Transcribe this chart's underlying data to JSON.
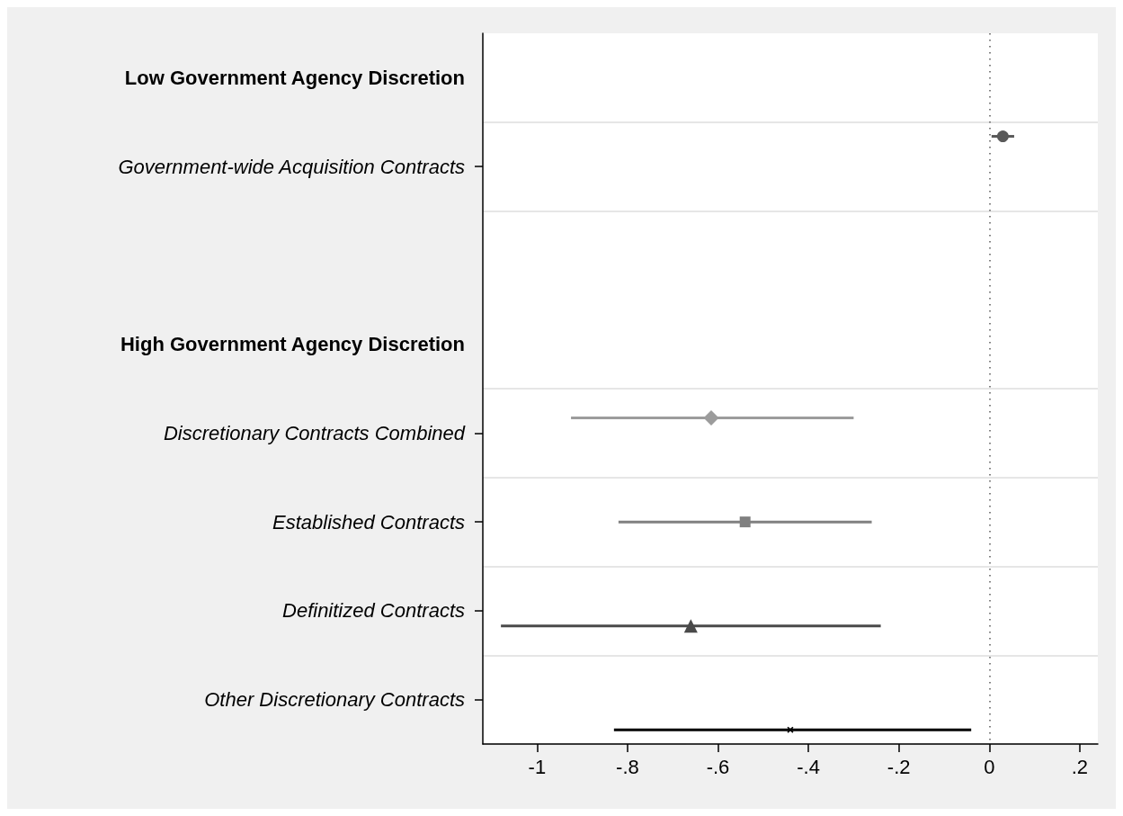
{
  "chart_data": {
    "type": "scatter",
    "orientation": "horizontal",
    "categories": [
      "Low Government Agency Discretion",
      "Government-wide Acquisition Contracts",
      null,
      "High Government Agency Discretion",
      "Discretionary Contracts Combined",
      "Established Contracts",
      "Definitized Contracts",
      "Other Discretionary Contracts"
    ],
    "series": [
      {
        "color": "#5a5a5a",
        "marker": "circle",
        "values": [
          null,
          0.03,
          null,
          null,
          null,
          null,
          null,
          null
        ],
        "errors": [
          null,
          [
            0.005,
            0.055
          ],
          null,
          null,
          null,
          null,
          null,
          null
        ]
      },
      {
        "color": "#9c9c9c",
        "marker": "diamond",
        "values": [
          null,
          null,
          null,
          null,
          -0.615,
          null,
          null,
          null
        ],
        "errors": [
          null,
          null,
          null,
          null,
          [
            -0.925,
            -0.3
          ],
          null,
          null,
          null
        ]
      },
      {
        "color": "#808080",
        "marker": "square",
        "values": [
          null,
          null,
          null,
          null,
          null,
          -0.54,
          null,
          null
        ],
        "errors": [
          null,
          null,
          null,
          null,
          null,
          [
            -0.82,
            -0.26
          ],
          null,
          null
        ]
      },
      {
        "color": "#4a4a4a",
        "marker": "triangle",
        "values": [
          null,
          null,
          null,
          null,
          null,
          null,
          -0.66,
          null
        ],
        "errors": [
          null,
          null,
          null,
          null,
          null,
          null,
          [
            -1.08,
            -0.24
          ],
          null
        ]
      },
      {
        "color": "#000000",
        "marker": "cross",
        "values": [
          null,
          null,
          null,
          null,
          null,
          null,
          null,
          -0.44
        ],
        "errors": [
          null,
          null,
          null,
          null,
          null,
          null,
          null,
          [
            -0.83,
            -0.04
          ]
        ]
      }
    ],
    "xlim": [
      -1.12,
      0.24
    ],
    "xticks": [
      -1,
      {
        "value": -0.8,
        "label": "-.8"
      },
      {
        "value": -0.6,
        "label": "-.6"
      },
      {
        "value": -0.4,
        "label": "-.4"
      },
      {
        "value": -0.2,
        "label": "-.2"
      },
      0,
      {
        "value": 0.2,
        "label": ".2"
      }
    ],
    "ref_lines": [
      {
        "axis": "x",
        "value": 0,
        "color": "#555555",
        "line_style": "dotted"
      }
    ],
    "grid": "y"
  }
}
